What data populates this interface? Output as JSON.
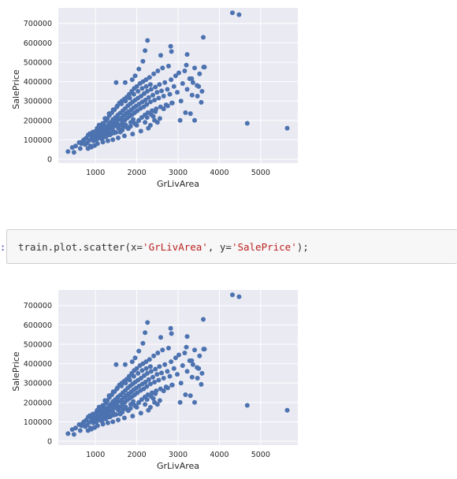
{
  "colors": {
    "plot_bg": "#eaeaf2",
    "grid": "#ffffff",
    "marker": "#4c72b0",
    "code_bg": "#f7f7f7",
    "string": "#ba2121",
    "prompt": "#303f9f"
  },
  "cell": {
    "prompt": ":",
    "code": {
      "pre": "train.plot.scatter(x=",
      "arg_x": "'GrLivArea'",
      "mid": ", y=",
      "arg_y": "'SalePrice'",
      "post": ");"
    }
  },
  "chart_data": [
    {
      "type": "scatter",
      "title": "",
      "xlabel": "GrLivArea",
      "ylabel": "SalePrice",
      "xlim": [
        100,
        5900
      ],
      "ylim": [
        -20000,
        780000
      ],
      "xticks": [
        1000,
        2000,
        3000,
        4000,
        5000
      ],
      "yticks": [
        0,
        100000,
        200000,
        300000,
        400000,
        500000,
        600000,
        700000
      ],
      "grid": true,
      "points": "shared"
    },
    {
      "type": "scatter",
      "title": "",
      "xlabel": "GrLivArea",
      "ylabel": "SalePrice",
      "xlim": [
        100,
        5900
      ],
      "ylim": [
        -20000,
        780000
      ],
      "xticks": [
        1000,
        2000,
        3000,
        4000,
        5000
      ],
      "yticks": [
        0,
        100000,
        200000,
        300000,
        400000,
        500000,
        600000,
        700000
      ],
      "grid": true,
      "points": "shared"
    }
  ],
  "scatter_points": [
    [
      334,
      39300
    ],
    [
      438,
      60000
    ],
    [
      480,
      35300
    ],
    [
      520,
      68400
    ],
    [
      605,
      86000
    ],
    [
      630,
      55000
    ],
    [
      660,
      80000
    ],
    [
      690,
      92000
    ],
    [
      720,
      100000
    ],
    [
      752,
      75500
    ],
    [
      780,
      110000
    ],
    [
      800,
      84000
    ],
    [
      825,
      125000
    ],
    [
      845,
      96000
    ],
    [
      864,
      132000
    ],
    [
      880,
      68000
    ],
    [
      900,
      105000
    ],
    [
      912,
      118000
    ],
    [
      935,
      140000
    ],
    [
      950,
      94000
    ],
    [
      960,
      128000
    ],
    [
      990,
      112000
    ],
    [
      1008,
      145000
    ],
    [
      1020,
      99000
    ],
    [
      1040,
      160000
    ],
    [
      1056,
      121000
    ],
    [
      1072,
      133000
    ],
    [
      1086,
      176000
    ],
    [
      1100,
      110000
    ],
    [
      1118,
      150000
    ],
    [
      1130,
      127000
    ],
    [
      1144,
      165000
    ],
    [
      1160,
      102000
    ],
    [
      1176,
      185000
    ],
    [
      1190,
      139000
    ],
    [
      1200,
      154000
    ],
    [
      1215,
      118000
    ],
    [
      1228,
      172000
    ],
    [
      1240,
      135000
    ],
    [
      1252,
      196000
    ],
    [
      1264,
      148000
    ],
    [
      1276,
      122000
    ],
    [
      1288,
      210000
    ],
    [
      1300,
      162000
    ],
    [
      1314,
      140000
    ],
    [
      1326,
      178000
    ],
    [
      1338,
      226000
    ],
    [
      1350,
      155000
    ],
    [
      1362,
      190000
    ],
    [
      1374,
      130000
    ],
    [
      1386,
      170000
    ],
    [
      1398,
      240000
    ],
    [
      1410,
      160000
    ],
    [
      1422,
      205000
    ],
    [
      1434,
      145000
    ],
    [
      1446,
      185000
    ],
    [
      1458,
      255000
    ],
    [
      1470,
      172000
    ],
    [
      1482,
      215000
    ],
    [
      1494,
      138000
    ],
    [
      1506,
      195000
    ],
    [
      1518,
      270000
    ],
    [
      1530,
      182000
    ],
    [
      1542,
      228000
    ],
    [
      1554,
      160000
    ],
    [
      1566,
      205000
    ],
    [
      1578,
      290000
    ],
    [
      1590,
      175000
    ],
    [
      1602,
      238000
    ],
    [
      1614,
      150000
    ],
    [
      1626,
      212000
    ],
    [
      1638,
      300000
    ],
    [
      1650,
      190000
    ],
    [
      1662,
      250000
    ],
    [
      1674,
      168000
    ],
    [
      1686,
      225000
    ],
    [
      1698,
      310000
    ],
    [
      1710,
      200000
    ],
    [
      1722,
      262000
    ],
    [
      1734,
      176000
    ],
    [
      1746,
      236000
    ],
    [
      1758,
      320000
    ],
    [
      1770,
      212000
    ],
    [
      1782,
      275000
    ],
    [
      1794,
      158000
    ],
    [
      1806,
      245000
    ],
    [
      1818,
      335000
    ],
    [
      1830,
      222000
    ],
    [
      1842,
      285000
    ],
    [
      1854,
      190000
    ],
    [
      1866,
      255000
    ],
    [
      1878,
      350000
    ],
    [
      1890,
      230000
    ],
    [
      1902,
      295000
    ],
    [
      1914,
      205000
    ],
    [
      1926,
      265000
    ],
    [
      1938,
      365000
    ],
    [
      1950,
      240000
    ],
    [
      1962,
      305000
    ],
    [
      1974,
      180000
    ],
    [
      1986,
      275000
    ],
    [
      2000,
      375000
    ],
    [
      2015,
      250000
    ],
    [
      2030,
      315000
    ],
    [
      2046,
      198000
    ],
    [
      2060,
      285000
    ],
    [
      2076,
      390000
    ],
    [
      2090,
      262000
    ],
    [
      2106,
      325000
    ],
    [
      2120,
      215000
    ],
    [
      2136,
      295000
    ],
    [
      2150,
      400000
    ],
    [
      2166,
      270000
    ],
    [
      2180,
      338000
    ],
    [
      2196,
      228000
    ],
    [
      2210,
      305000
    ],
    [
      2226,
      410000
    ],
    [
      2240,
      282000
    ],
    [
      2256,
      350000
    ],
    [
      2270,
      240000
    ],
    [
      2290,
      318000
    ],
    [
      2310,
      422000
    ],
    [
      2330,
      295000
    ],
    [
      2350,
      360000
    ],
    [
      2370,
      250000
    ],
    [
      2390,
      330000
    ],
    [
      2410,
      440000
    ],
    [
      2430,
      305000
    ],
    [
      2450,
      372000
    ],
    [
      2470,
      260000
    ],
    [
      2490,
      345000
    ],
    [
      2510,
      455000
    ],
    [
      2530,
      315000
    ],
    [
      2550,
      385000
    ],
    [
      2575,
      270000
    ],
    [
      2600,
      352000
    ],
    [
      2625,
      470000
    ],
    [
      2650,
      325000
    ],
    [
      2680,
      395000
    ],
    [
      2710,
      280000
    ],
    [
      2740,
      360000
    ],
    [
      2770,
      480000
    ],
    [
      2800,
      335000
    ],
    [
      2830,
      410000
    ],
    [
      2860,
      290000
    ],
    [
      2900,
      375000
    ],
    [
      2940,
      430000
    ],
    [
      2980,
      345000
    ],
    [
      3020,
      445000
    ],
    [
      3070,
      300000
    ],
    [
      3110,
      390000
    ],
    [
      3160,
      455000
    ],
    [
      3220,
      360000
    ],
    [
      3280,
      415000
    ],
    [
      3340,
      330000
    ],
    [
      3400,
      470000
    ],
    [
      3460,
      380000
    ],
    [
      3520,
      440000
    ],
    [
      3580,
      350000
    ],
    [
      3640,
      475000
    ],
    [
      1500,
      395000
    ],
    [
      1720,
      395000
    ],
    [
      1890,
      410000
    ],
    [
      1960,
      430000
    ],
    [
      2050,
      465000
    ],
    [
      2150,
      505000
    ],
    [
      2200,
      560000
    ],
    [
      2260,
      612000
    ],
    [
      2580,
      535000
    ],
    [
      2820,
      582000
    ],
    [
      2840,
      555000
    ],
    [
      3220,
      540000
    ],
    [
      3200,
      485000
    ],
    [
      3330,
      415000
    ],
    [
      3360,
      395000
    ],
    [
      3470,
      325000
    ],
    [
      3500,
      375000
    ],
    [
      3560,
      293000
    ],
    [
      3610,
      628000
    ],
    [
      3620,
      475000
    ],
    [
      3050,
      200000
    ],
    [
      3180,
      240000
    ],
    [
      3300,
      235000
    ],
    [
      3400,
      200000
    ],
    [
      2500,
      190000
    ],
    [
      2430,
      200000
    ],
    [
      2560,
      210000
    ],
    [
      2330,
      175000
    ],
    [
      2280,
      160000
    ],
    [
      2100,
      145000
    ],
    [
      1900,
      130000
    ],
    [
      1700,
      120000
    ],
    [
      1550,
      110000
    ],
    [
      1420,
      100000
    ],
    [
      1300,
      95000
    ],
    [
      1180,
      88000
    ],
    [
      1050,
      80000
    ],
    [
      980,
      70000
    ],
    [
      900,
      62000
    ],
    [
      820,
      55000
    ],
    [
      1600,
      140000
    ],
    [
      1800,
      160000
    ],
    [
      2000,
      175000
    ],
    [
      2200,
      190000
    ],
    [
      2400,
      220000
    ],
    [
      1150,
      105000
    ],
    [
      1250,
      115000
    ],
    [
      1350,
      125000
    ],
    [
      1450,
      135000
    ],
    [
      1650,
      150000
    ],
    [
      1750,
      165000
    ],
    [
      1850,
      170000
    ],
    [
      1950,
      185000
    ],
    [
      2050,
      200000
    ],
    [
      2250,
      215000
    ],
    [
      2350,
      230000
    ],
    [
      2450,
      245000
    ],
    [
      2650,
      260000
    ],
    [
      2750,
      275000
    ],
    [
      2850,
      290000
    ],
    [
      1230,
      210000
    ],
    [
      1330,
      235000
    ],
    [
      1430,
      255000
    ],
    [
      1530,
      275000
    ],
    [
      1630,
      285000
    ],
    [
      1730,
      300000
    ],
    [
      1830,
      315000
    ],
    [
      1930,
      335000
    ],
    [
      2030,
      350000
    ],
    [
      2130,
      365000
    ],
    [
      2230,
      375000
    ],
    [
      2330,
      385000
    ],
    [
      4316,
      755000
    ],
    [
      4476,
      745000
    ],
    [
      4676,
      185000
    ],
    [
      5642,
      160000
    ]
  ]
}
